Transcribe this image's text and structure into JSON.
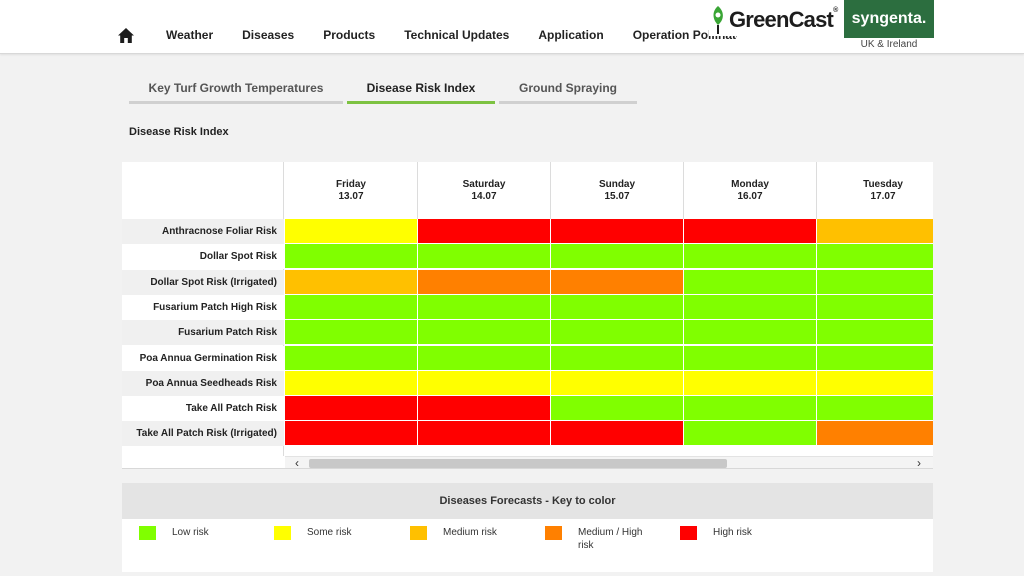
{
  "header": {
    "nav": [
      "Weather",
      "Diseases",
      "Products",
      "Technical Updates",
      "Application",
      "Operation Pollinatc"
    ],
    "greencast": "GreenCast",
    "greencast_mark": "®",
    "syngenta": "syngenta.",
    "region": "UK & Ireland"
  },
  "tabs": [
    "Key Turf Growth Temperatures",
    "Disease Risk Index",
    "Ground Spraying"
  ],
  "active_tab": 1,
  "section_title": "Disease Risk Index",
  "colors": {
    "low": "#80ff00",
    "some": "#ffff00",
    "medium": "#ffc000",
    "medium_high": "#ff8000",
    "high": "#ff0000",
    "accent": "#7dc242",
    "brand": "#2c6e3f"
  },
  "days": [
    {
      "day": "Friday",
      "date": "13.07"
    },
    {
      "day": "Saturday",
      "date": "14.07"
    },
    {
      "day": "Sunday",
      "date": "15.07"
    },
    {
      "day": "Monday",
      "date": "16.07"
    },
    {
      "day": "Tuesday",
      "date": "17.07"
    }
  ],
  "rows": [
    {
      "label": "Anthracnose Foliar Risk",
      "risks": [
        "some",
        "high",
        "high",
        "high",
        "medium"
      ]
    },
    {
      "label": "Dollar Spot Risk",
      "risks": [
        "low",
        "low",
        "low",
        "low",
        "low"
      ]
    },
    {
      "label": "Dollar Spot Risk (Irrigated)",
      "risks": [
        "medium",
        "medium_high",
        "medium_high",
        "low",
        "low"
      ]
    },
    {
      "label": "Fusarium Patch High Risk",
      "risks": [
        "low",
        "low",
        "low",
        "low",
        "low"
      ]
    },
    {
      "label": "Fusarium Patch Risk",
      "risks": [
        "low",
        "low",
        "low",
        "low",
        "low"
      ]
    },
    {
      "label": "Poa Annua Germination Risk",
      "risks": [
        "low",
        "low",
        "low",
        "low",
        "low"
      ]
    },
    {
      "label": "Poa Annua Seedheads Risk",
      "risks": [
        "some",
        "some",
        "some",
        "some",
        "some"
      ]
    },
    {
      "label": "Take All Patch Risk",
      "risks": [
        "high",
        "high",
        "low",
        "low",
        "low"
      ]
    },
    {
      "label": "Take All Patch Risk (Irrigated)",
      "risks": [
        "high",
        "high",
        "high",
        "low",
        "medium_high"
      ]
    }
  ],
  "key": {
    "title": "Diseases Forecasts - Key to color",
    "items": [
      {
        "level": "low",
        "label": "Low risk"
      },
      {
        "level": "some",
        "label": "Some risk"
      },
      {
        "level": "medium",
        "label": "Medium risk"
      },
      {
        "level": "medium_high",
        "label": "Medium / High risk"
      },
      {
        "level": "high",
        "label": "High risk"
      }
    ]
  }
}
